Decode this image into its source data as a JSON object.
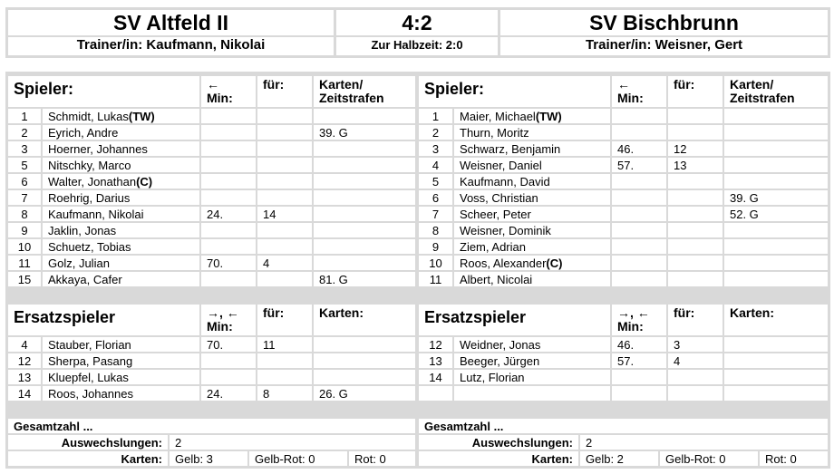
{
  "header": {
    "home_team": "SV Altfeld II",
    "score": "4:2",
    "away_team": "SV Bischbrunn",
    "home_trainer": "Trainer/in: Kaufmann, Nikolai",
    "halftime": "Zur Halbzeit: 2:0",
    "away_trainer": "Trainer/in: Weisner, Gert"
  },
  "home": {
    "players_header": "Spieler:",
    "min_header": "←\nMin:",
    "fuer_header": "für:",
    "cards_header": "Karten/\nZeitstrafen",
    "players": [
      {
        "nr": "1",
        "name": "Schmidt, Lukas",
        "suffix": "(TW)",
        "min": "",
        "fuer": "",
        "cards": ""
      },
      {
        "nr": "2",
        "name": "Eyrich, Andre",
        "suffix": "",
        "min": "",
        "fuer": "",
        "cards": "39. G"
      },
      {
        "nr": "3",
        "name": "Hoerner, Johannes",
        "suffix": "",
        "min": "",
        "fuer": "",
        "cards": ""
      },
      {
        "nr": "5",
        "name": "Nitschky, Marco",
        "suffix": "",
        "min": "",
        "fuer": "",
        "cards": ""
      },
      {
        "nr": "6",
        "name": "Walter, Jonathan",
        "suffix": "(C)",
        "min": "",
        "fuer": "",
        "cards": ""
      },
      {
        "nr": "7",
        "name": "Roehrig, Darius",
        "suffix": "",
        "min": "",
        "fuer": "",
        "cards": ""
      },
      {
        "nr": "8",
        "name": "Kaufmann, Nikolai",
        "suffix": "",
        "min": "24.",
        "fuer": "14",
        "cards": ""
      },
      {
        "nr": "9",
        "name": "Jaklin, Jonas",
        "suffix": "",
        "min": "",
        "fuer": "",
        "cards": ""
      },
      {
        "nr": "10",
        "name": "Schuetz, Tobias",
        "suffix": "",
        "min": "",
        "fuer": "",
        "cards": ""
      },
      {
        "nr": "11",
        "name": "Golz, Julian",
        "suffix": "",
        "min": "70.",
        "fuer": "4",
        "cards": ""
      },
      {
        "nr": "15",
        "name": "Akkaya, Cafer",
        "suffix": "",
        "min": "",
        "fuer": "",
        "cards": "81. G"
      }
    ],
    "subs_header": "Ersatzspieler",
    "subs_min_header": "→, ←\nMin:",
    "subs_fuer_header": "für:",
    "subs_cards_header": "Karten:",
    "subs": [
      {
        "nr": "4",
        "name": "Stauber, Florian",
        "min": "70.",
        "fuer": "11",
        "cards": ""
      },
      {
        "nr": "12",
        "name": "Sherpa, Pasang",
        "min": "",
        "fuer": "",
        "cards": ""
      },
      {
        "nr": "13",
        "name": "Kluepfel, Lukas",
        "min": "",
        "fuer": "",
        "cards": ""
      },
      {
        "nr": "14",
        "name": "Roos, Johannes",
        "min": "24.",
        "fuer": "8",
        "cards": "26. G"
      }
    ],
    "totals": {
      "title": "Gesamtzahl ...",
      "subs_label": "Auswechslungen:",
      "subs_value": "2",
      "cards_label": "Karten:",
      "gelb": "Gelb: 3",
      "gelbrot": "Gelb-Rot: 0",
      "rot": "Rot: 0"
    }
  },
  "away": {
    "players_header": "Spieler:",
    "min_header": "←\nMin:",
    "fuer_header": "für:",
    "cards_header": "Karten/\nZeitstrafen",
    "players": [
      {
        "nr": "1",
        "name": "Maier, Michael",
        "suffix": "(TW)",
        "min": "",
        "fuer": "",
        "cards": ""
      },
      {
        "nr": "2",
        "name": "Thurn, Moritz",
        "suffix": "",
        "min": "",
        "fuer": "",
        "cards": ""
      },
      {
        "nr": "3",
        "name": "Schwarz, Benjamin",
        "suffix": "",
        "min": "46.",
        "fuer": "12",
        "cards": ""
      },
      {
        "nr": "4",
        "name": "Weisner, Daniel",
        "suffix": "",
        "min": "57.",
        "fuer": "13",
        "cards": ""
      },
      {
        "nr": "5",
        "name": "Kaufmann, David",
        "suffix": "",
        "min": "",
        "fuer": "",
        "cards": ""
      },
      {
        "nr": "6",
        "name": "Voss, Christian",
        "suffix": "",
        "min": "",
        "fuer": "",
        "cards": "39. G"
      },
      {
        "nr": "7",
        "name": "Scheer, Peter",
        "suffix": "",
        "min": "",
        "fuer": "",
        "cards": "52. G"
      },
      {
        "nr": "8",
        "name": "Weisner, Dominik",
        "suffix": "",
        "min": "",
        "fuer": "",
        "cards": ""
      },
      {
        "nr": "9",
        "name": "Ziem, Adrian",
        "suffix": "",
        "min": "",
        "fuer": "",
        "cards": ""
      },
      {
        "nr": "10",
        "name": "Roos, Alexander",
        "suffix": "(C)",
        "min": "",
        "fuer": "",
        "cards": ""
      },
      {
        "nr": "11",
        "name": "Albert, Nicolai",
        "suffix": "",
        "min": "",
        "fuer": "",
        "cards": ""
      }
    ],
    "subs_header": "Ersatzspieler",
    "subs_min_header": "→, ←\nMin:",
    "subs_fuer_header": "für:",
    "subs_cards_header": "Karten:",
    "subs": [
      {
        "nr": "12",
        "name": "Weidner, Jonas",
        "min": "46.",
        "fuer": "3",
        "cards": ""
      },
      {
        "nr": "13",
        "name": "Beeger, Jürgen",
        "min": "57.",
        "fuer": "4",
        "cards": ""
      },
      {
        "nr": "14",
        "name": "Lutz, Florian",
        "min": "",
        "fuer": "",
        "cards": ""
      },
      {
        "nr": "",
        "name": "",
        "min": "",
        "fuer": "",
        "cards": ""
      }
    ],
    "totals": {
      "title": "Gesamtzahl ...",
      "subs_label": "Auswechslungen:",
      "subs_value": "2",
      "cards_label": "Karten:",
      "gelb": "Gelb: 2",
      "gelbrot": "Gelb-Rot: 0",
      "rot": "Rot: 0"
    }
  }
}
